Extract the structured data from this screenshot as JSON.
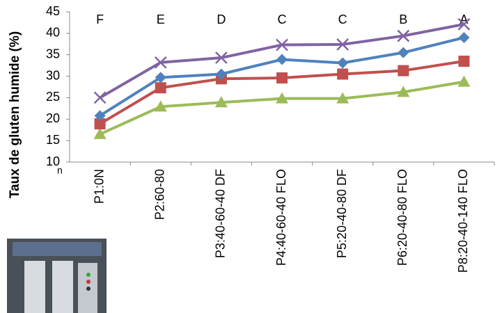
{
  "chart_data": {
    "type": "line",
    "y_label": "Taux de gluten humide (%)",
    "side_text": "n",
    "categories": [
      "P1:0N",
      "P2:60-80",
      "P3:40-60-40 DF",
      "P4:40-60-40 FLO",
      "P5:20-40-80 DF",
      "P6:20-40-80 FLO",
      "P8:20-40-140 FLO"
    ],
    "annotations": [
      "F",
      "E",
      "D",
      "C",
      "C",
      "B",
      "A"
    ],
    "series": [
      {
        "color": "#8064a2",
        "marker": "x",
        "values": [
          25,
          33.2,
          34.3,
          37.3,
          37.4,
          39.4,
          42.1
        ]
      },
      {
        "color": "#4f81bd",
        "marker": "diamond",
        "values": [
          20.8,
          29.7,
          30.5,
          33.9,
          33.1,
          35.5,
          39
        ]
      },
      {
        "color": "#c0504d",
        "marker": "square",
        "values": [
          18.9,
          27.3,
          29.4,
          29.6,
          30.5,
          31.3,
          33.5
        ]
      },
      {
        "color": "#9bbb59",
        "marker": "triangle",
        "values": [
          16.5,
          22.9,
          23.9,
          24.8,
          24.8,
          26.3,
          28.7
        ]
      }
    ],
    "ylim": [
      10,
      45
    ],
    "yticks": [
      10,
      15,
      20,
      25,
      30,
      35,
      40,
      45
    ],
    "grid": false
  }
}
